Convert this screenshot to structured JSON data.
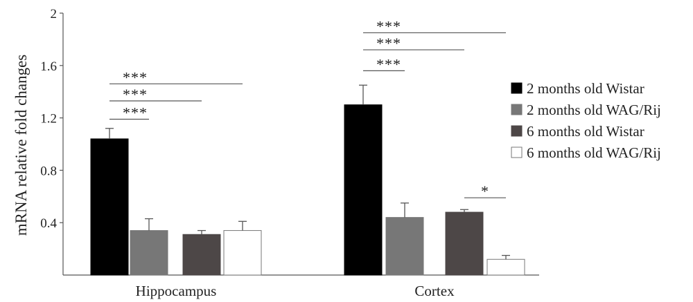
{
  "chart_data": {
    "type": "bar",
    "title": "",
    "xlabel": "",
    "ylabel": "mRNA relative fold changes",
    "ylim": [
      0,
      2
    ],
    "yticks": [
      "0.4",
      "0.8",
      "1.2",
      "1.6",
      "2"
    ],
    "grid": false,
    "legend_position": "right",
    "categories": [
      "Hippocampus",
      "Cortex"
    ],
    "series": [
      {
        "name": "2 months old Wistar",
        "color": "#000000",
        "values": [
          1.04,
          1.3
        ],
        "errors": [
          0.08,
          0.15
        ]
      },
      {
        "name": "2 months old WAG/Rij",
        "color": "#777777",
        "values": [
          0.34,
          0.44
        ],
        "errors": [
          0.09,
          0.11
        ]
      },
      {
        "name": "6 months old Wistar",
        "color": "#4d4747",
        "values": [
          0.31,
          0.48
        ],
        "errors": [
          0.03,
          0.02
        ]
      },
      {
        "name": "6 months old WAG/Rij",
        "color": "#ffffff",
        "values": [
          0.34,
          0.12
        ],
        "errors": [
          0.07,
          0.03
        ]
      }
    ],
    "annotations": [
      {
        "category": "Hippocampus",
        "from": 0,
        "to": 1,
        "label": "***",
        "level": 1.19
      },
      {
        "category": "Hippocampus",
        "from": 0,
        "to": 2,
        "label": "***",
        "level": 1.33
      },
      {
        "category": "Hippocampus",
        "from": 0,
        "to": 3,
        "label": "***",
        "level": 1.46
      },
      {
        "category": "Cortex",
        "from": 0,
        "to": 1,
        "label": "***",
        "level": 1.56
      },
      {
        "category": "Cortex",
        "from": 0,
        "to": 2,
        "label": "***",
        "level": 1.72
      },
      {
        "category": "Cortex",
        "from": 0,
        "to": 3,
        "label": "***",
        "level": 1.85
      },
      {
        "category": "Cortex",
        "from": 2,
        "to": 3,
        "label": "*",
        "level": 0.59
      }
    ]
  }
}
